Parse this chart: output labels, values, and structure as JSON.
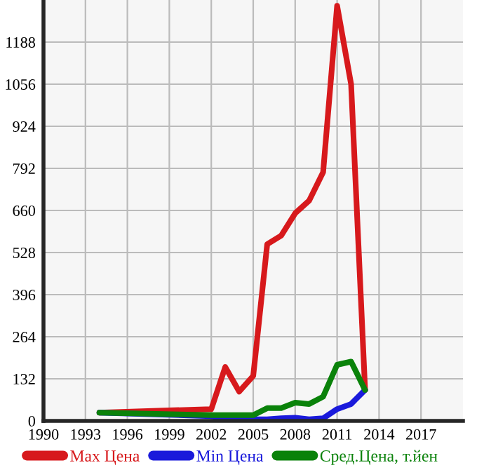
{
  "chart_data": {
    "type": "line",
    "x": [
      1994,
      2002,
      2003,
      2004,
      2005,
      2006,
      2007,
      2008,
      2009,
      2010,
      2011,
      2012,
      2013
    ],
    "series": [
      {
        "name": "Max Цена",
        "color": "#d7191c",
        "values": [
          26,
          37,
          169,
          92,
          141,
          554,
          581,
          651,
          691,
          780,
          1302,
          1056,
          97
        ]
      },
      {
        "name": "Min Цена",
        "color": "#1a1adb",
        "values": [
          26,
          15,
          5,
          5,
          5,
          5,
          8,
          10,
          5,
          8,
          37,
          53,
          97
        ]
      },
      {
        "name": "Сред.Цена, т.йен",
        "color": "#0a820a",
        "values": [
          26,
          18,
          18,
          18,
          18,
          40,
          40,
          57,
          53,
          76,
          176,
          186,
          97
        ]
      }
    ],
    "xlim": [
      1990,
      2020
    ],
    "xticks": [
      1990,
      1993,
      1996,
      1999,
      2002,
      2005,
      2008,
      2011,
      2014,
      2017
    ],
    "ylim": [
      0,
      1320
    ],
    "yticks": [
      0,
      132,
      264,
      396,
      528,
      660,
      792,
      924,
      1056,
      1188
    ],
    "grid": true,
    "legend": "bottom",
    "marker": "none",
    "line_style": "solid"
  }
}
